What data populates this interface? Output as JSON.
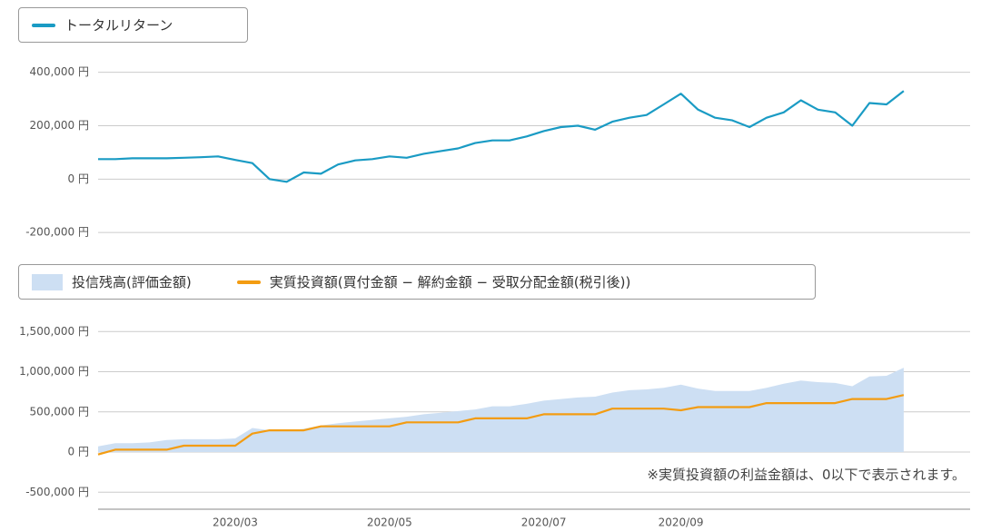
{
  "chart_data": [
    {
      "type": "line",
      "series": [
        {
          "name": "トータルリターン",
          "color": "#1a9bc4",
          "values": [
            75000,
            75000,
            78000,
            78000,
            78000,
            80000,
            82000,
            85000,
            72000,
            60000,
            0,
            -10000,
            25000,
            20000,
            55000,
            70000,
            75000,
            85000,
            80000,
            95000,
            105000,
            115000,
            135000,
            145000,
            145000,
            160000,
            180000,
            195000,
            200000,
            185000,
            215000,
            230000,
            240000,
            280000,
            320000,
            260000,
            230000,
            220000,
            195000,
            230000,
            250000,
            295000,
            260000,
            250000,
            200000,
            285000,
            280000,
            330000
          ]
        }
      ],
      "ylim": [
        -230000,
        460000
      ],
      "yticks": [
        {
          "value": 400000,
          "label": "400,000 円"
        },
        {
          "value": 200000,
          "label": "200,000 円"
        },
        {
          "value": 0,
          "label": "0 円"
        },
        {
          "value": -200000,
          "label": "-200,000 円"
        }
      ],
      "grid": true
    },
    {
      "type": "area-line",
      "categories": [
        null,
        null,
        null,
        null,
        null,
        null,
        null,
        null,
        "2020/03",
        null,
        null,
        null,
        null,
        null,
        null,
        null,
        null,
        "2020/05",
        null,
        null,
        null,
        null,
        null,
        null,
        null,
        null,
        "2020/07",
        null,
        null,
        null,
        null,
        null,
        null,
        null,
        "2020/09",
        null,
        null,
        null,
        null,
        null,
        null,
        null,
        null,
        null,
        null,
        null,
        null,
        null
      ],
      "series": [
        {
          "name": "投信残高(評価金額)",
          "color": "#cddff3",
          "kind": "area",
          "values": [
            70000,
            110000,
            110000,
            120000,
            150000,
            160000,
            160000,
            160000,
            170000,
            300000,
            270000,
            260000,
            290000,
            330000,
            360000,
            380000,
            400000,
            420000,
            440000,
            470000,
            490000,
            510000,
            530000,
            570000,
            570000,
            600000,
            640000,
            660000,
            680000,
            690000,
            740000,
            770000,
            780000,
            800000,
            840000,
            790000,
            760000,
            760000,
            760000,
            800000,
            850000,
            890000,
            870000,
            860000,
            820000,
            940000,
            950000,
            1050000
          ]
        },
        {
          "name": "実質投資額(買付金額 − 解約金額 − 受取分配金額(税引後))",
          "color": "#f39c12",
          "kind": "line",
          "values": [
            -30000,
            30000,
            30000,
            30000,
            30000,
            80000,
            80000,
            80000,
            80000,
            230000,
            270000,
            270000,
            270000,
            320000,
            320000,
            320000,
            320000,
            320000,
            370000,
            370000,
            370000,
            370000,
            420000,
            420000,
            420000,
            420000,
            470000,
            470000,
            470000,
            470000,
            540000,
            540000,
            540000,
            540000,
            520000,
            560000,
            560000,
            560000,
            560000,
            610000,
            610000,
            610000,
            610000,
            610000,
            660000,
            660000,
            660000,
            710000
          ]
        }
      ],
      "ylim": [
        -700000,
        1650000
      ],
      "yticks": [
        {
          "value": 1500000,
          "label": "1,500,000 円"
        },
        {
          "value": 1000000,
          "label": "1,000,000 円"
        },
        {
          "value": 500000,
          "label": "500,000 円"
        },
        {
          "value": 0,
          "label": "0 円"
        },
        {
          "value": -500000,
          "label": "-500,000 円"
        }
      ],
      "grid": true,
      "note": "※実質投資額の利益金額は、0以下で表示されます。"
    }
  ]
}
